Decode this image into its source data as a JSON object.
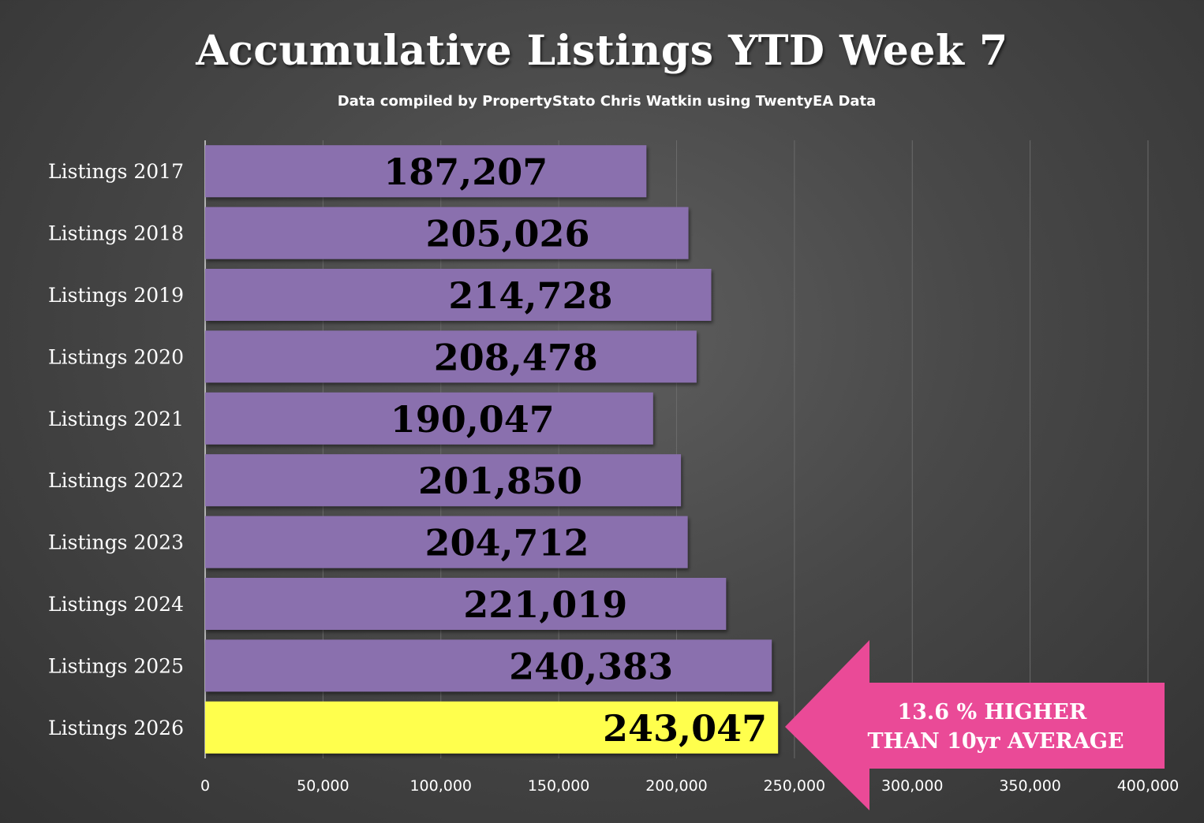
{
  "chart_data": {
    "type": "bar",
    "orientation": "horizontal",
    "title": "Accumulative Listings YTD Week 7",
    "subtitle": "Data compiled by PropertyStato Chris Watkin using TwentyEA Data",
    "categories": [
      "Listings 2017",
      "Listings 2018",
      "Listings 2019",
      "Listings 2020",
      "Listings 2021",
      "Listings 2022",
      "Listings 2023",
      "Listings 2024",
      "Listings 2025",
      "Listings 2026"
    ],
    "values": [
      187207,
      205026,
      214728,
      208478,
      190047,
      201850,
      204712,
      221019,
      240383,
      243047
    ],
    "value_labels": [
      "187,207",
      "205,026",
      "214,728",
      "208,478",
      "190,047",
      "201,850",
      "204,712",
      "221,019",
      "240,383",
      "243,047"
    ],
    "xlim": [
      0,
      400000
    ],
    "x_ticks": [
      0,
      50000,
      100000,
      150000,
      200000,
      250000,
      300000,
      350000,
      400000
    ],
    "x_tick_labels": [
      "0",
      "50,000",
      "100,000",
      "150,000",
      "200,000",
      "250,000",
      "300,000",
      "350,000",
      "400,000"
    ],
    "grid": true,
    "bar_color": "#8a6fae",
    "highlight_color": "#ffff4d",
    "highlight_index": 9,
    "annotation": {
      "lines": [
        "13.6 % HIGHER",
        "THAN 10yr AVERAGE"
      ],
      "color": "#ea4a97",
      "points_to": "Listings 2026"
    }
  },
  "colors": {
    "grid": "#6a6a6a",
    "text": "#ffffff"
  }
}
